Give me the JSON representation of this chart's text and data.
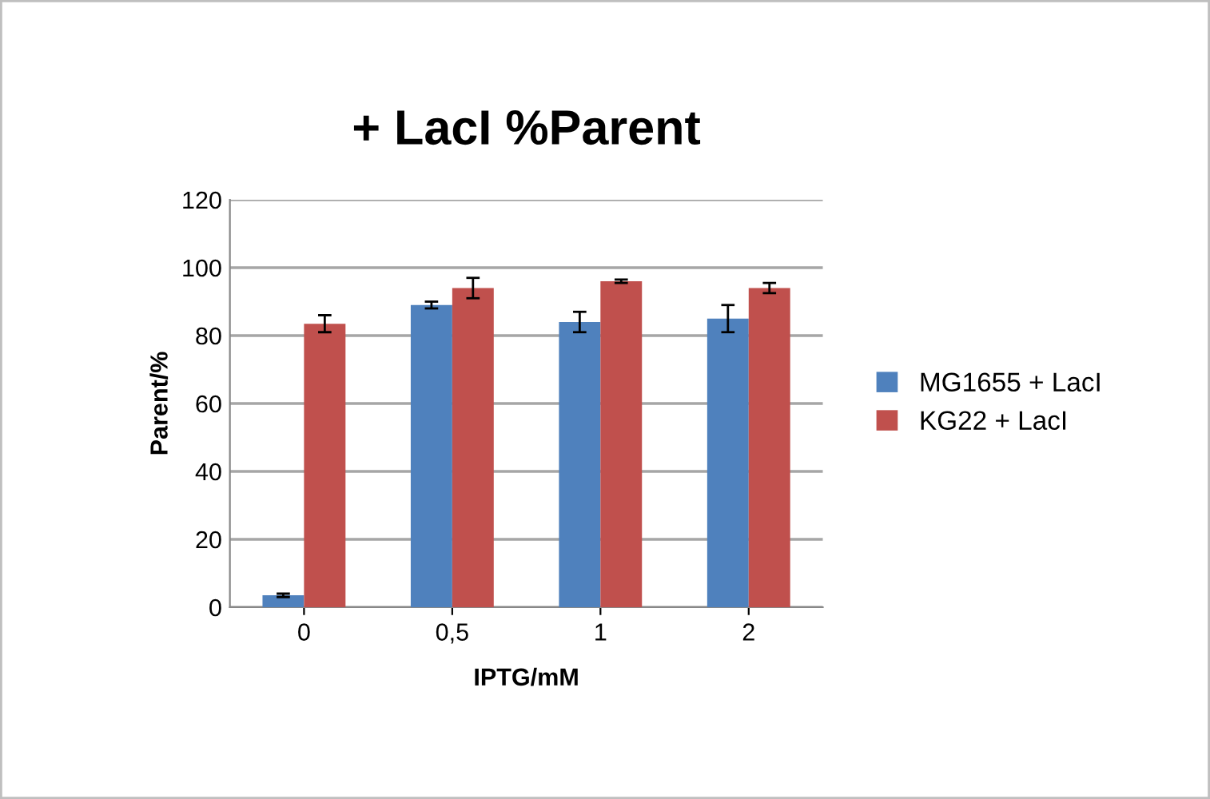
{
  "chart_data": {
    "type": "bar",
    "title": "+ LacI %Parent",
    "xlabel": "IPTG/mM",
    "ylabel": "Parent/%",
    "categories": [
      "0",
      "0,5",
      "1",
      "2"
    ],
    "series": [
      {
        "name": "MG1655 + LacI",
        "color": "#4f81bd",
        "values": [
          3.5,
          89,
          84,
          85
        ],
        "errors": [
          0.5,
          1,
          3,
          4
        ]
      },
      {
        "name": "KG22 + LacI",
        "color": "#c0504d",
        "values": [
          83.5,
          94,
          96,
          94
        ],
        "errors": [
          2.5,
          3,
          0.5,
          1.5
        ]
      }
    ],
    "ylim": [
      0,
      120
    ],
    "yticks": [
      0,
      20,
      40,
      60,
      80,
      100,
      120
    ],
    "grid": "y",
    "legend": "right"
  }
}
